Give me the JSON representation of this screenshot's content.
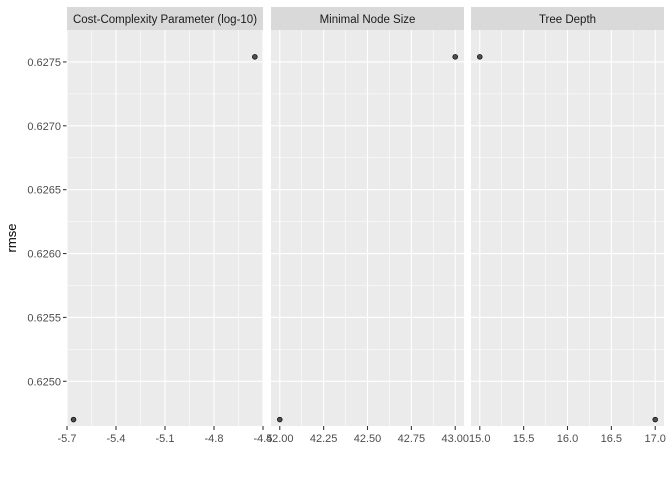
{
  "chart_data": {
    "type": "scatter",
    "ylabel": "rmse",
    "xlabel": "",
    "ylim": [
      0.62465,
      0.62775
    ],
    "y_ticks": [
      0.625,
      0.6255,
      0.626,
      0.6265,
      0.627,
      0.6275
    ],
    "y_tick_labels": [
      "0.6250",
      "0.6255",
      "0.6260",
      "0.6265",
      "0.6270",
      "0.6275"
    ],
    "facets": [
      {
        "label": "Cost-Complexity Parameter (log-10)",
        "xlim": [
          -5.7,
          -4.5
        ],
        "x_ticks": [
          -5.7,
          -5.4,
          -5.1,
          -4.8,
          -4.5
        ],
        "x_tick_labels": [
          "-5.7",
          "-5.4",
          "-5.1",
          "-4.8",
          "-4.5"
        ],
        "points": [
          {
            "x": -5.66,
            "y": 0.6247
          },
          {
            "x": -4.55,
            "y": 0.62754
          }
        ]
      },
      {
        "label": "Minimal Node Size",
        "xlim": [
          41.95,
          43.05
        ],
        "x_ticks": [
          42.0,
          42.25,
          42.5,
          42.75,
          43.0
        ],
        "x_tick_labels": [
          "42.00",
          "42.25",
          "42.50",
          "42.75",
          "43.00"
        ],
        "points": [
          {
            "x": 42.0,
            "y": 0.6247
          },
          {
            "x": 43.0,
            "y": 0.62754
          }
        ]
      },
      {
        "label": "Tree Depth",
        "xlim": [
          14.9,
          17.1
        ],
        "x_ticks": [
          15.0,
          15.5,
          16.0,
          16.5,
          17.0
        ],
        "x_tick_labels": [
          "15.0",
          "15.5",
          "16.0",
          "16.5",
          "17.0"
        ],
        "points": [
          {
            "x": 15.0,
            "y": 0.62754
          },
          {
            "x": 17.0,
            "y": 0.6247
          }
        ]
      }
    ]
  }
}
